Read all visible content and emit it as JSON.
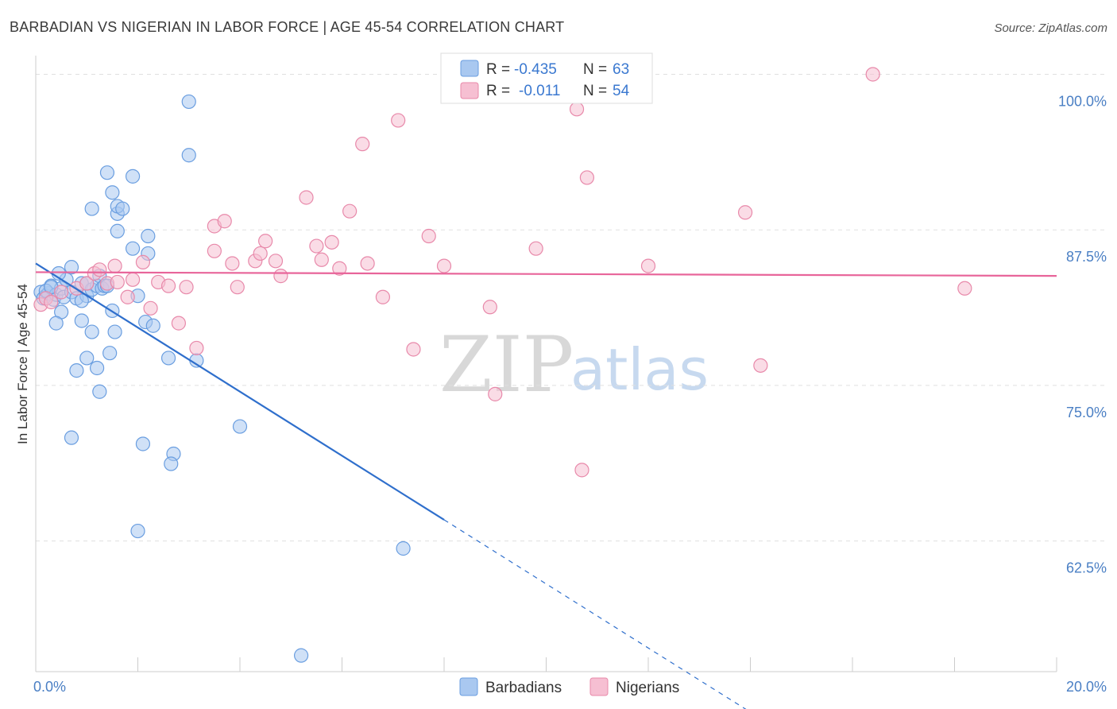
{
  "title": "BARBADIAN VS NIGERIAN IN LABOR FORCE | AGE 45-54 CORRELATION CHART",
  "source": "Source: ZipAtlas.com",
  "watermark": {
    "zip": "ZIP",
    "atlas": "atlas"
  },
  "colors": {
    "blue_fill": "#a9c8f0",
    "blue_stroke": "#6a9ee0",
    "blue_line": "#2f6fcc",
    "pink_fill": "#f6bfd2",
    "pink_stroke": "#e889aa",
    "pink_line": "#e8659a",
    "axis_text": "#4a7fc4",
    "grid": "#e0e0e0"
  },
  "legend": {
    "rows": [
      {
        "r_label": "R =",
        "r_value": "-0.435",
        "n_label": "N =",
        "n_value": "63"
      },
      {
        "r_label": "R =",
        "r_value": "-0.011",
        "n_label": "N =",
        "n_value": "54"
      }
    ]
  },
  "bottom_legend": [
    "Barbadians",
    "Nigerians"
  ],
  "chart_data": {
    "type": "scatter",
    "title": "BARBADIAN VS NIGERIAN IN LABOR FORCE | AGE 45-54 CORRELATION CHART",
    "xlabel": "",
    "ylabel": "In Labor Force | Age 45-54",
    "xlim": [
      0,
      20
    ],
    "ylim": [
      52,
      101.5
    ],
    "x_tick_labels": [
      "0.0%",
      "20.0%"
    ],
    "y_ticks": [
      62.5,
      75.0,
      87.5,
      100.0
    ],
    "y_tick_labels": [
      "62.5%",
      "75.0%",
      "87.5%",
      "100.0%"
    ],
    "grid": true,
    "legend_position": "top-center",
    "series": [
      {
        "name": "Barbadians",
        "r": -0.435,
        "n": 63,
        "trend": {
          "x0": 0.0,
          "y0": 84.8,
          "x1": 8.0,
          "y1": 64.2,
          "dash_to_x": 20.0
        },
        "points": [
          [
            0.1,
            82.5
          ],
          [
            0.2,
            82.2
          ],
          [
            0.15,
            82.0
          ],
          [
            0.25,
            82.4
          ],
          [
            0.3,
            83.0
          ],
          [
            0.35,
            81.9
          ],
          [
            0.2,
            82.6
          ],
          [
            0.4,
            82.3
          ],
          [
            0.5,
            82.8
          ],
          [
            0.55,
            82.1
          ],
          [
            0.6,
            83.5
          ],
          [
            0.45,
            84.0
          ],
          [
            0.5,
            80.9
          ],
          [
            0.4,
            80.0
          ],
          [
            0.7,
            82.5
          ],
          [
            0.8,
            82.0
          ],
          [
            0.9,
            83.2
          ],
          [
            1.0,
            82.2
          ],
          [
            1.1,
            82.7
          ],
          [
            1.2,
            83.0
          ],
          [
            1.25,
            83.8
          ],
          [
            1.3,
            82.8
          ],
          [
            1.35,
            83.0
          ],
          [
            0.7,
            84.5
          ],
          [
            0.9,
            81.8
          ],
          [
            0.9,
            80.2
          ],
          [
            1.1,
            79.3
          ],
          [
            1.0,
            77.2
          ],
          [
            1.4,
            83.0
          ],
          [
            1.5,
            81.0
          ],
          [
            1.45,
            77.6
          ],
          [
            1.55,
            79.3
          ],
          [
            1.2,
            76.4
          ],
          [
            1.25,
            74.5
          ],
          [
            0.8,
            76.2
          ],
          [
            0.7,
            70.8
          ],
          [
            1.1,
            89.2
          ],
          [
            1.4,
            92.1
          ],
          [
            1.5,
            90.5
          ],
          [
            1.6,
            87.4
          ],
          [
            1.6,
            88.8
          ],
          [
            1.6,
            89.4
          ],
          [
            1.7,
            89.2
          ],
          [
            1.9,
            91.8
          ],
          [
            1.9,
            86.0
          ],
          [
            2.2,
            87.0
          ],
          [
            2.2,
            85.6
          ],
          [
            2.0,
            82.2
          ],
          [
            2.15,
            80.1
          ],
          [
            2.3,
            79.8
          ],
          [
            2.6,
            77.2
          ],
          [
            3.0,
            97.8
          ],
          [
            3.0,
            93.5
          ],
          [
            3.15,
            77.0
          ],
          [
            2.1,
            70.3
          ],
          [
            2.7,
            69.5
          ],
          [
            2.65,
            68.7
          ],
          [
            2.0,
            63.3
          ],
          [
            4.0,
            71.7
          ],
          [
            7.2,
            61.9
          ],
          [
            5.2,
            53.3
          ],
          [
            0.3,
            82.9
          ],
          [
            1.0,
            83.2
          ]
        ]
      },
      {
        "name": "Nigerians",
        "r": -0.011,
        "n": 54,
        "trend": {
          "x0": 0.0,
          "y0": 84.1,
          "x1": 20.0,
          "y1": 83.8
        },
        "points": [
          [
            0.1,
            81.5
          ],
          [
            0.2,
            82.0
          ],
          [
            0.3,
            81.7
          ],
          [
            0.5,
            82.5
          ],
          [
            0.8,
            82.8
          ],
          [
            1.0,
            83.2
          ],
          [
            1.15,
            84.0
          ],
          [
            1.25,
            84.3
          ],
          [
            1.4,
            83.2
          ],
          [
            1.55,
            84.6
          ],
          [
            1.6,
            83.3
          ],
          [
            1.8,
            82.1
          ],
          [
            1.9,
            83.5
          ],
          [
            2.1,
            84.9
          ],
          [
            2.25,
            81.2
          ],
          [
            2.4,
            83.3
          ],
          [
            2.6,
            83.0
          ],
          [
            2.8,
            80.0
          ],
          [
            2.95,
            82.9
          ],
          [
            3.15,
            78.0
          ],
          [
            3.5,
            85.8
          ],
          [
            3.5,
            87.8
          ],
          [
            3.7,
            88.2
          ],
          [
            3.85,
            84.8
          ],
          [
            3.95,
            82.9
          ],
          [
            4.3,
            85.0
          ],
          [
            4.4,
            85.6
          ],
          [
            4.5,
            86.6
          ],
          [
            4.7,
            85.0
          ],
          [
            4.8,
            83.8
          ],
          [
            5.3,
            90.1
          ],
          [
            5.5,
            86.2
          ],
          [
            5.6,
            85.1
          ],
          [
            5.8,
            86.5
          ],
          [
            5.95,
            84.4
          ],
          [
            6.15,
            89.0
          ],
          [
            6.4,
            94.4
          ],
          [
            6.5,
            84.8
          ],
          [
            6.8,
            82.1
          ],
          [
            7.1,
            96.3
          ],
          [
            7.4,
            77.9
          ],
          [
            7.7,
            87.0
          ],
          [
            8.0,
            84.6
          ],
          [
            8.9,
            81.3
          ],
          [
            9.0,
            74.3
          ],
          [
            9.8,
            86.0
          ],
          [
            10.6,
            97.2
          ],
          [
            10.8,
            91.7
          ],
          [
            10.7,
            68.2
          ],
          [
            12.0,
            84.6
          ],
          [
            13.9,
            88.9
          ],
          [
            14.2,
            76.6
          ],
          [
            16.4,
            100.0
          ],
          [
            18.2,
            82.8
          ]
        ]
      }
    ]
  }
}
